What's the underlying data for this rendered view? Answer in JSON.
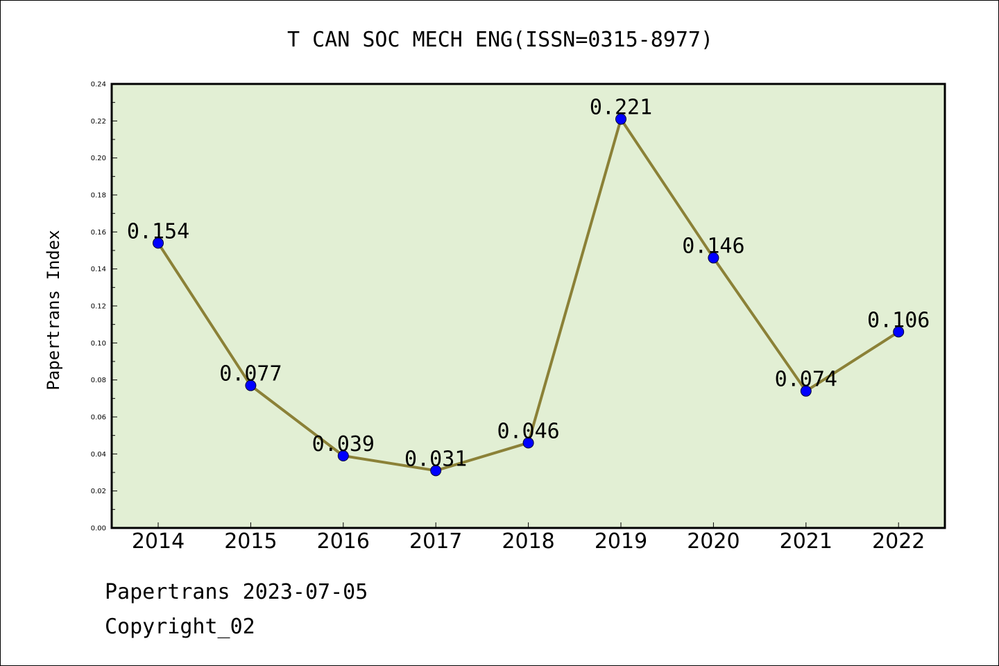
{
  "chart_data": {
    "type": "line",
    "title": "T CAN SOC MECH ENG(ISSN=0315-8977)",
    "xlabel": "",
    "ylabel": "Papertrans Index",
    "categories": [
      "2014",
      "2015",
      "2016",
      "2017",
      "2018",
      "2019",
      "2020",
      "2021",
      "2022"
    ],
    "series": [
      {
        "values": [
          0.154,
          0.077,
          0.039,
          0.031,
          0.046,
          0.221,
          0.146,
          0.074,
          0.106
        ],
        "labels": [
          "0.154",
          "0.077",
          "0.039",
          "0.031",
          "0.046",
          "0.221",
          "0.146",
          "0.074",
          "0.106"
        ]
      }
    ],
    "ylim": [
      0,
      0.24
    ],
    "yticks": [
      "0.00",
      "0.02",
      "0.04",
      "0.06",
      "0.08",
      "0.10",
      "0.12",
      "0.14",
      "0.16",
      "0.18",
      "0.20",
      "0.22",
      "0.24"
    ],
    "grid": false,
    "colors": {
      "plot_bg": "#e2efd4",
      "line": "#8b8137",
      "marker": "#0000ff"
    }
  },
  "footer": {
    "line1": "Papertrans 2023-07-05",
    "line2": "Copyright_02"
  }
}
